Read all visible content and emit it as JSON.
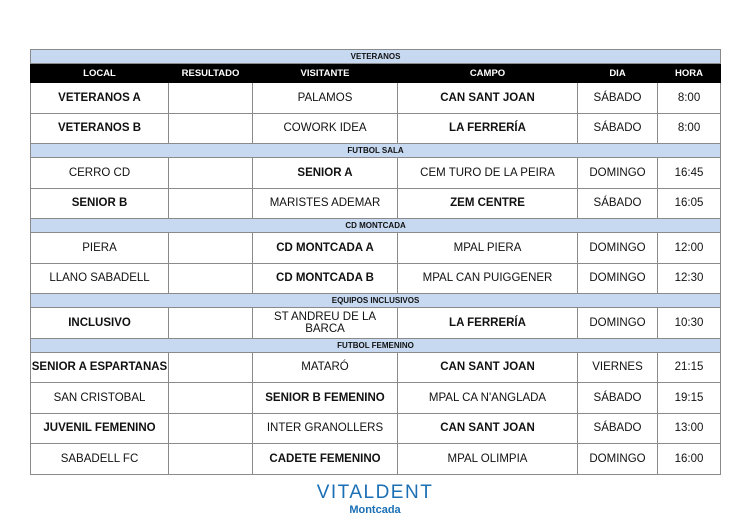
{
  "columns": [
    "LOCAL",
    "RESULTADO",
    "VISITANTE",
    "CAMPO",
    "DIA",
    "HORA"
  ],
  "sections": [
    {
      "title": "VETERANOS",
      "show_header": true,
      "rows": [
        {
          "local": "VETERANOS A",
          "local_bold": true,
          "resultado": "",
          "visitante": "PALAMOS",
          "visitante_bold": false,
          "campo": "CAN SANT JOAN",
          "campo_bold": true,
          "dia": "SÁBADO",
          "hora": "8:00"
        },
        {
          "local": "VETERANOS B",
          "local_bold": true,
          "resultado": "",
          "visitante": "COWORK IDEA",
          "visitante_bold": false,
          "campo": "LA FERRERÍA",
          "campo_bold": true,
          "dia": "SÁBADO",
          "hora": "8:00"
        }
      ]
    },
    {
      "title": "FUTBOL SALA",
      "show_header": false,
      "rows": [
        {
          "local": "CERRO CD",
          "local_bold": false,
          "resultado": "",
          "visitante": "SENIOR A",
          "visitante_bold": true,
          "campo": "CEM TURO DE LA PEIRA",
          "campo_bold": false,
          "dia": "DOMINGO",
          "hora": "16:45"
        },
        {
          "local": "SENIOR B",
          "local_bold": true,
          "resultado": "",
          "visitante": "MARISTES ADEMAR",
          "visitante_bold": false,
          "campo": "ZEM CENTRE",
          "campo_bold": true,
          "dia": "SÁBADO",
          "hora": "16:05"
        }
      ]
    },
    {
      "title": "CD MONTCADA",
      "show_header": false,
      "rows": [
        {
          "local": "PIERA",
          "local_bold": false,
          "resultado": "",
          "visitante": "CD MONTCADA A",
          "visitante_bold": true,
          "campo": "MPAL PIERA",
          "campo_bold": false,
          "dia": "DOMINGO",
          "hora": "12:00"
        },
        {
          "local": "LLANO SABADELL",
          "local_bold": false,
          "resultado": "",
          "visitante": "CD MONTCADA B",
          "visitante_bold": true,
          "campo": "MPAL CAN PUIGGENER",
          "campo_bold": false,
          "dia": "DOMINGO",
          "hora": "12:30"
        }
      ]
    },
    {
      "title": "EQUIPOS INCLUSIVOS",
      "show_header": false,
      "rows": [
        {
          "local": "INCLUSIVO",
          "local_bold": true,
          "resultado": "",
          "visitante": "ST ANDREU DE LA BARCA",
          "visitante_bold": false,
          "campo": "LA FERRERÍA",
          "campo_bold": true,
          "dia": "DOMINGO",
          "hora": "10:30"
        }
      ]
    },
    {
      "title": "FUTBOL FEMENINO",
      "show_header": false,
      "rows": [
        {
          "local": "SENIOR A ESPARTANAS",
          "local_bold": true,
          "resultado": "",
          "visitante": "MATARÓ",
          "visitante_bold": false,
          "campo": "CAN SANT JOAN",
          "campo_bold": true,
          "dia": "VIERNES",
          "hora": "21:15"
        },
        {
          "local": "SAN CRISTOBAL",
          "local_bold": false,
          "resultado": "",
          "visitante": "SENIOR B FEMENINO",
          "visitante_bold": true,
          "campo": "MPAL CA N'ANGLADA",
          "campo_bold": false,
          "dia": "SÁBADO",
          "hora": "19:15"
        },
        {
          "local": "JUVENIL FEMENINO",
          "local_bold": true,
          "resultado": "",
          "visitante": "INTER GRANOLLERS",
          "visitante_bold": false,
          "campo": "CAN SANT JOAN",
          "campo_bold": true,
          "dia": "SÁBADO",
          "hora": "13:00"
        },
        {
          "local": "SABADELL FC",
          "local_bold": false,
          "resultado": "",
          "visitante": "CADETE FEMENINO",
          "visitante_bold": true,
          "campo": "MPAL OLIMPIA",
          "campo_bold": false,
          "dia": "DOMINGO",
          "hora": "16:00"
        }
      ]
    }
  ],
  "logo": {
    "brand": "VITALDENT",
    "sub": "Montcada",
    "color": "#1a6fb5"
  },
  "colors": {
    "section_band": "#c6d9f1",
    "header_bg": "#000000"
  }
}
